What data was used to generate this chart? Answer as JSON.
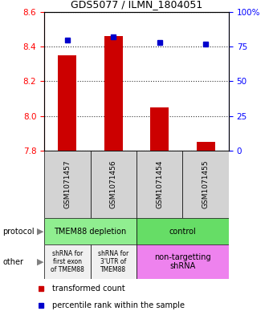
{
  "title": "GDS5077 / ILMN_1804051",
  "samples": [
    "GSM1071457",
    "GSM1071456",
    "GSM1071454",
    "GSM1071455"
  ],
  "red_values": [
    8.35,
    8.46,
    8.05,
    7.85
  ],
  "blue_values": [
    80,
    82,
    78,
    77
  ],
  "ylim_left": [
    7.8,
    8.6
  ],
  "ylim_right": [
    0,
    100
  ],
  "yticks_left": [
    7.8,
    8.0,
    8.2,
    8.4,
    8.6
  ],
  "yticks_right": [
    0,
    25,
    50,
    75,
    100
  ],
  "ytick_labels_right": [
    "0",
    "25",
    "50",
    "75",
    "100%"
  ],
  "protocol_color_depletion": "#90EE90",
  "protocol_color_control": "#66DD66",
  "other_color_shrna1": "#F0F0F0",
  "other_color_shrna2": "#F0F0F0",
  "other_color_nontarget": "#EE82EE",
  "bar_color": "#CC0000",
  "dot_color": "#0000CC",
  "sample_box_color": "#D3D3D3",
  "legend_red_label": "transformed count",
  "legend_blue_label": "percentile rank within the sample"
}
